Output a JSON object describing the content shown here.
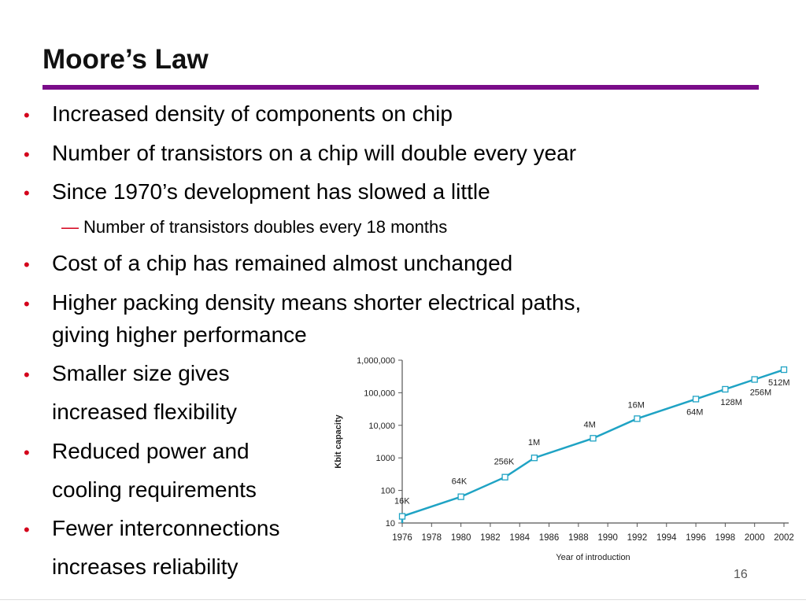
{
  "slide": {
    "title": "Moore’s Law",
    "page_number": "16",
    "accent_color": "#7a0c89",
    "bullet_color": "#d4001b",
    "bullet_symbol": "•",
    "sub_bullet_symbol": "—"
  },
  "bullets": [
    {
      "text": "Increased density of components on chip"
    },
    {
      "text": "Number of transistors on a chip will double every year"
    },
    {
      "text": "Since 1970’s development has slowed a little"
    },
    {
      "sub": "Number of transistors doubles every 18 months"
    },
    {
      "text": "Cost of a chip has remained almost unchanged"
    },
    {
      "text": "Higher packing density means shorter electrical paths,",
      "cont": "giving higher performance"
    },
    {
      "text": "Smaller size gives",
      "cont": "increased flexibility"
    },
    {
      "text": "Reduced power and",
      "cont": "cooling requirements"
    },
    {
      "text": "Fewer interconnections",
      "cont": "increases reliability"
    }
  ],
  "chart_data": {
    "type": "line",
    "title": "",
    "xlabel": "Year of introduction",
    "ylabel": "Kbit capacity",
    "y_scale": "log",
    "ylim": [
      10,
      1000000
    ],
    "xlim": [
      1976,
      2002
    ],
    "x_ticks": [
      "1976",
      "1978",
      "1980",
      "1982",
      "1984",
      "1986",
      "1988",
      "1990",
      "1992",
      "1994",
      "1996",
      "1998",
      "2000",
      "2002"
    ],
    "y_ticks": [
      "10",
      "100",
      "1000",
      "10,000",
      "100,000",
      "1,000,000"
    ],
    "line_color": "#1fa3c4",
    "points": [
      {
        "x": 1976,
        "y": 16,
        "label": "16K"
      },
      {
        "x": 1980,
        "y": 64,
        "label": "64K"
      },
      {
        "x": 1983,
        "y": 256,
        "label": "256K"
      },
      {
        "x": 1985,
        "y": 1000,
        "label": "1M"
      },
      {
        "x": 1989,
        "y": 4000,
        "label": "4M"
      },
      {
        "x": 1992,
        "y": 16000,
        "label": "16M"
      },
      {
        "x": 1996,
        "y": 64000,
        "label": "64M"
      },
      {
        "x": 1998,
        "y": 128000,
        "label": "128M"
      },
      {
        "x": 2000,
        "y": 256000,
        "label": "256M"
      },
      {
        "x": 2002,
        "y": 512000,
        "label": "512M"
      }
    ]
  }
}
